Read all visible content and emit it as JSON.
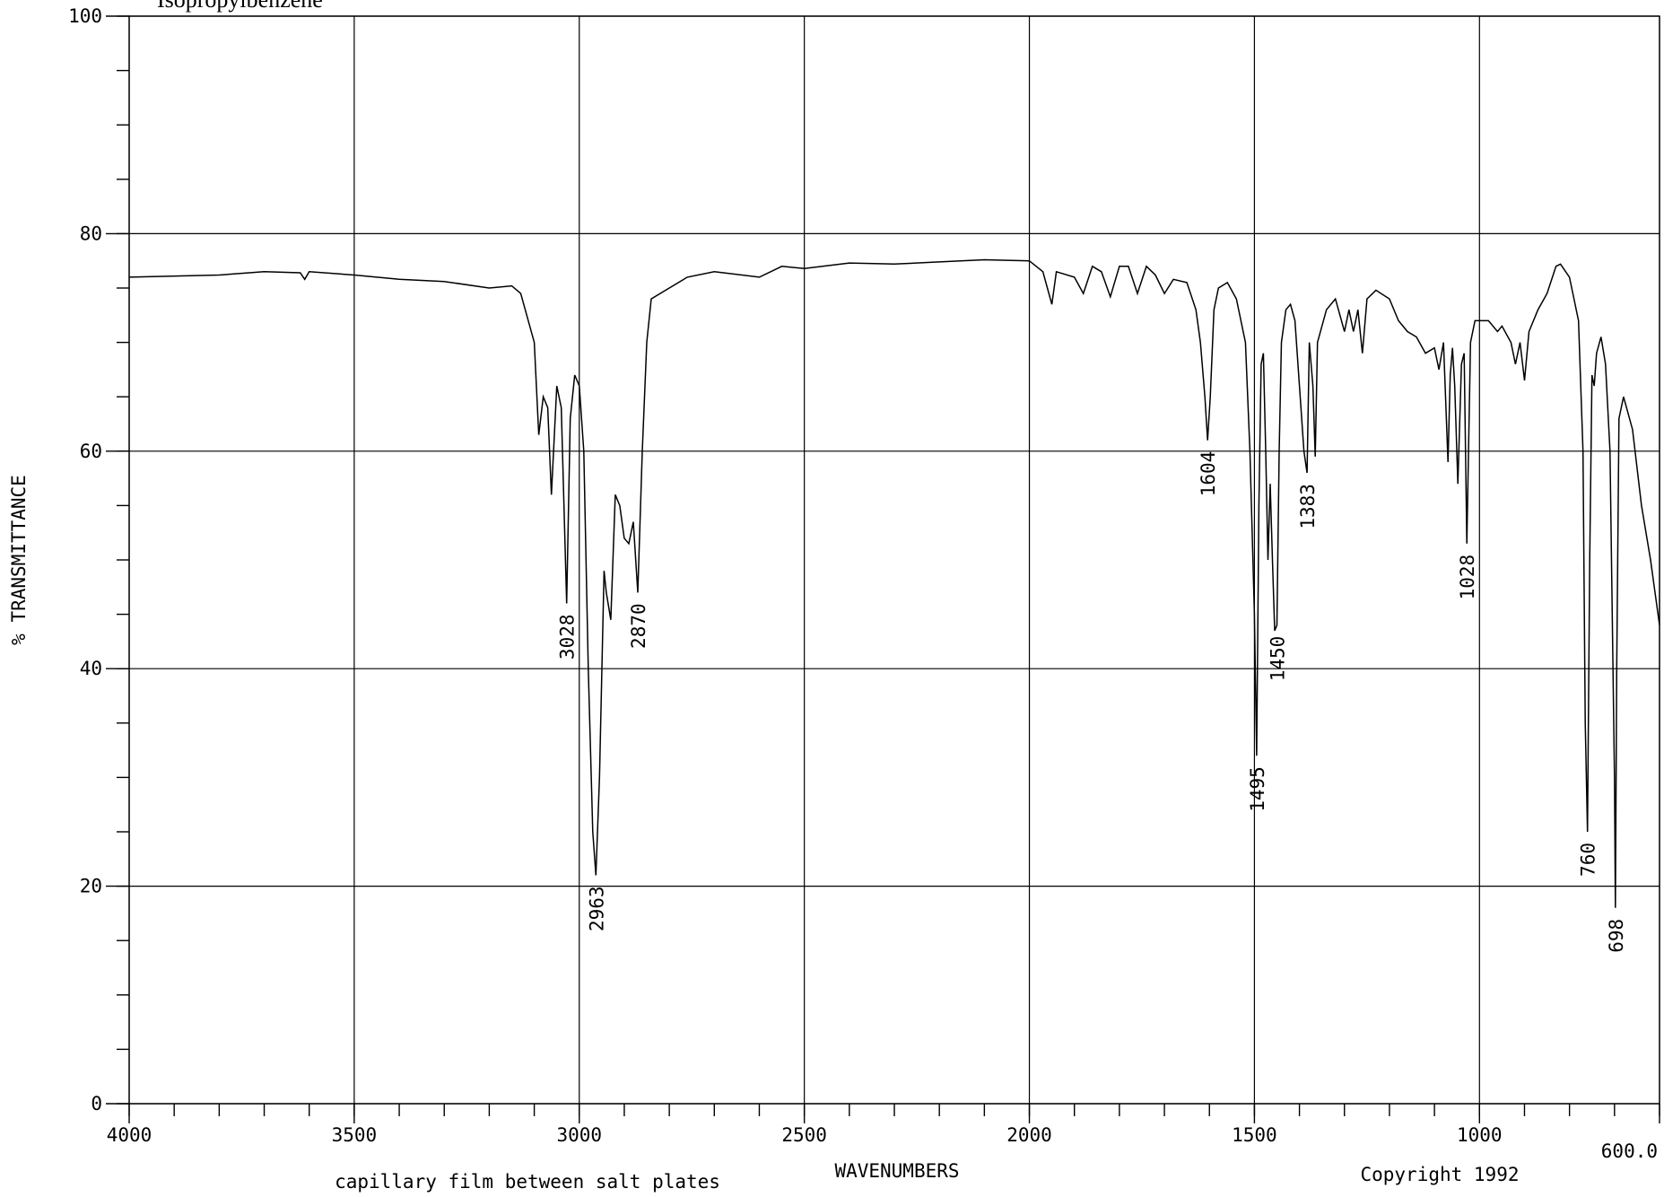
{
  "chart_data": {
    "type": "line",
    "title": "Isopropylbenzene",
    "x_label": "WAVENUMBERS",
    "y_label": "% TRANSMITTANCE",
    "notes": [
      "capillary film between salt plates",
      "Copyright 1992"
    ],
    "xlim": [
      4000,
      600
    ],
    "ylim": [
      0,
      100
    ],
    "xticks": [
      4000,
      3500,
      3000,
      2500,
      2000,
      1500,
      1000,
      {
        "value": 600,
        "label": "600.0"
      }
    ],
    "yticks": [
      0,
      20,
      40,
      60,
      80,
      100
    ],
    "xminorticks": [
      4000,
      3900,
      3800,
      3700,
      3600,
      3500,
      3400,
      3300,
      3200,
      3100,
      3000,
      2900,
      2800,
      2700,
      2600,
      2500,
      2400,
      2300,
      2200,
      2100,
      2000,
      1900,
      1800,
      1700,
      1600,
      1500,
      1400,
      1300,
      1200,
      1100,
      1000,
      900,
      800,
      700,
      600
    ],
    "yminorticks": [
      0,
      5,
      10,
      15,
      20,
      25,
      30,
      35,
      40,
      45,
      50,
      55,
      60,
      65,
      70,
      75,
      80,
      85,
      90,
      95,
      100
    ],
    "grid": true,
    "x": [
      4000,
      3800,
      3700,
      3620,
      3610,
      3600,
      3500,
      3400,
      3300,
      3200,
      3150,
      3130,
      3100,
      3090,
      3080,
      3070,
      3062,
      3050,
      3040,
      3028,
      3020,
      3010,
      3000,
      2990,
      2980,
      2970,
      2963,
      2955,
      2945,
      2940,
      2930,
      2920,
      2910,
      2900,
      2890,
      2880,
      2870,
      2860,
      2850,
      2840,
      2800,
      2760,
      2700,
      2600,
      2550,
      2500,
      2400,
      2300,
      2200,
      2100,
      2000,
      1970,
      1960,
      1950,
      1940,
      1900,
      1880,
      1860,
      1840,
      1820,
      1800,
      1780,
      1760,
      1740,
      1720,
      1700,
      1680,
      1650,
      1630,
      1620,
      1610,
      1604,
      1598,
      1590,
      1580,
      1560,
      1540,
      1520,
      1510,
      1500,
      1495,
      1490,
      1485,
      1480,
      1475,
      1470,
      1465,
      1460,
      1455,
      1450,
      1445,
      1440,
      1430,
      1420,
      1410,
      1400,
      1390,
      1383,
      1378,
      1370,
      1365,
      1360,
      1340,
      1320,
      1300,
      1290,
      1280,
      1270,
      1260,
      1250,
      1230,
      1200,
      1180,
      1160,
      1140,
      1120,
      1100,
      1090,
      1080,
      1070,
      1065,
      1060,
      1055,
      1048,
      1040,
      1034,
      1028,
      1020,
      1010,
      1000,
      980,
      960,
      950,
      930,
      920,
      910,
      900,
      890,
      870,
      850,
      830,
      820,
      800,
      780,
      770,
      765,
      760,
      755,
      750,
      745,
      740,
      730,
      720,
      710,
      700,
      698,
      695,
      690,
      680,
      660,
      640,
      620,
      600
    ],
    "series": [
      {
        "name": "Isopropylbenzene",
        "color": "#000000",
        "values": [
          76,
          76.2,
          76.5,
          76.4,
          75.8,
          76.5,
          76.2,
          75.8,
          75.6,
          75,
          75.2,
          74.5,
          70,
          61.5,
          65,
          64,
          56,
          66,
          64,
          46,
          63,
          67,
          66,
          60,
          40,
          25,
          21,
          30,
          49,
          47,
          44.5,
          56,
          55,
          52,
          51.5,
          53.5,
          47,
          60,
          70,
          74,
          75,
          76,
          76.5,
          76,
          77,
          76.8,
          77.3,
          77.2,
          77.4,
          77.6,
          77.5,
          76.5,
          75,
          73.5,
          76.5,
          76,
          74.5,
          77,
          76.5,
          74.2,
          77,
          77,
          74.5,
          77,
          76.2,
          74.5,
          75.8,
          75.5,
          73,
          70,
          65,
          61,
          65,
          73,
          75,
          75.5,
          74,
          70,
          60,
          45,
          32,
          55,
          68,
          69,
          60,
          50,
          57,
          50,
          43.5,
          44,
          60,
          70,
          73,
          73.5,
          72,
          66,
          60,
          58,
          70,
          66,
          59.5,
          70,
          73,
          74,
          71,
          73,
          71,
          73,
          69,
          74,
          74.8,
          74,
          72,
          71,
          70.5,
          69,
          69.5,
          67.5,
          70,
          59,
          67,
          69.5,
          66,
          57,
          68,
          69,
          51.5,
          70,
          72,
          72,
          72,
          71,
          71.5,
          70,
          68,
          70,
          66.5,
          71,
          73,
          74.5,
          77,
          77.2,
          76,
          72,
          60,
          35,
          25,
          50,
          67,
          66,
          69,
          70.5,
          68,
          60,
          30,
          18,
          40,
          63,
          65,
          62,
          55,
          50,
          44
        ]
      }
    ],
    "peak_labels": [
      3028,
      2963,
      2870,
      1604,
      1495,
      1450,
      1383,
      1028,
      760,
      698
    ]
  }
}
